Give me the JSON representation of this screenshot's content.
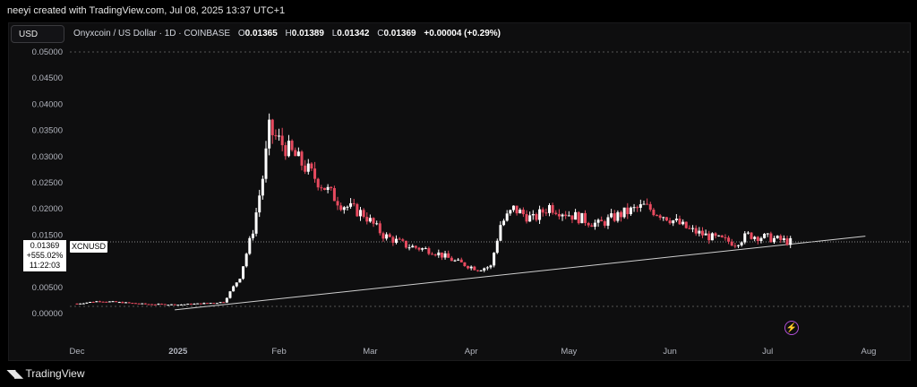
{
  "attribution": "neeyi created with TradingView.com, Jul 08, 2025 13:37 UTC+1",
  "currency_button": "USD",
  "legend": {
    "title": "Onyxcoin / US Dollar · 1D · COINBASE",
    "o_label": "O",
    "o_value": "0.01365",
    "h_label": "H",
    "h_value": "0.01389",
    "l_label": "L",
    "l_value": "0.01342",
    "c_label": "C",
    "c_value": "0.01369",
    "change": "+0.00004 (+0.29%)"
  },
  "price_label": {
    "price": "0.01369",
    "change_pct": "+555.02%",
    "countdown": "11:22:03",
    "symbol": "XCNUSD"
  },
  "footer": {
    "brand": "TradingView"
  },
  "icons": {
    "bolt": "lightning-icon",
    "logo": "tradingview-logo-icon"
  },
  "colors": {
    "up": "#ffffff",
    "down": "#e84a5f",
    "trendline": "#cfcfcf",
    "grid": "#2a2a2e"
  },
  "chart_data": {
    "type": "candlestick",
    "title": "Onyxcoin / US Dollar · 1D · COINBASE",
    "x_tick_labels": [
      "Dec",
      "2025",
      "Feb",
      "Mar",
      "Apr",
      "May",
      "Jun",
      "Jul",
      "Aug"
    ],
    "y_tick_labels": [
      "0.00000",
      "0.00500",
      "0.01000",
      "0.01500",
      "0.02000",
      "0.02500",
      "0.03000",
      "0.03500",
      "0.04000",
      "0.04500",
      "0.05000"
    ],
    "ylim": [
      0,
      0.05
    ],
    "grid": false,
    "last_price": 0.01369,
    "trendline": [
      {
        "date": "2024-12-31",
        "price": 0.0007
      },
      {
        "date": "2025-07-31",
        "price": 0.0148
      }
    ],
    "series": [
      {
        "date": "2024-12-01",
        "close": 0.0019
      },
      {
        "date": "2024-12-08",
        "close": 0.0024
      },
      {
        "date": "2024-12-15",
        "close": 0.0021
      },
      {
        "date": "2024-12-22",
        "close": 0.0018
      },
      {
        "date": "2025-01-01",
        "close": 0.0017
      },
      {
        "date": "2025-01-08",
        "close": 0.0019
      },
      {
        "date": "2025-01-15",
        "close": 0.0022
      },
      {
        "date": "2025-01-20",
        "close": 0.007
      },
      {
        "date": "2025-01-24",
        "close": 0.016
      },
      {
        "date": "2025-01-27",
        "close": 0.026
      },
      {
        "date": "2025-01-29",
        "close": 0.035
      },
      {
        "date": "2025-02-01",
        "close": 0.033
      },
      {
        "date": "2025-02-06",
        "close": 0.03
      },
      {
        "date": "2025-02-12",
        "close": 0.026
      },
      {
        "date": "2025-02-20",
        "close": 0.021
      },
      {
        "date": "2025-02-27",
        "close": 0.019
      },
      {
        "date": "2025-03-05",
        "close": 0.015
      },
      {
        "date": "2025-03-12",
        "close": 0.013
      },
      {
        "date": "2025-03-20",
        "close": 0.012
      },
      {
        "date": "2025-03-27",
        "close": 0.01
      },
      {
        "date": "2025-04-03",
        "close": 0.0085
      },
      {
        "date": "2025-04-07",
        "close": 0.009
      },
      {
        "date": "2025-04-10",
        "close": 0.017
      },
      {
        "date": "2025-04-14",
        "close": 0.02
      },
      {
        "date": "2025-04-20",
        "close": 0.018
      },
      {
        "date": "2025-04-25",
        "close": 0.0205
      },
      {
        "date": "2025-05-01",
        "close": 0.019
      },
      {
        "date": "2025-05-10",
        "close": 0.017
      },
      {
        "date": "2025-05-17",
        "close": 0.019
      },
      {
        "date": "2025-05-24",
        "close": 0.0205
      },
      {
        "date": "2025-05-31",
        "close": 0.0185
      },
      {
        "date": "2025-06-07",
        "close": 0.016
      },
      {
        "date": "2025-06-14",
        "close": 0.0145
      },
      {
        "date": "2025-06-21",
        "close": 0.0135
      },
      {
        "date": "2025-06-25",
        "close": 0.015
      },
      {
        "date": "2025-07-01",
        "close": 0.0145
      },
      {
        "date": "2025-07-08",
        "close": 0.01369
      }
    ]
  }
}
